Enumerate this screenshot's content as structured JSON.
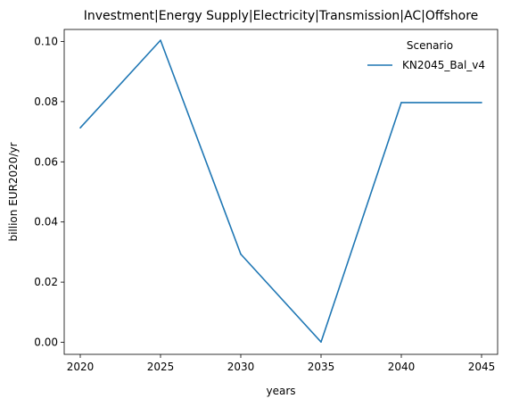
{
  "chart_data": {
    "type": "line",
    "title": "Investment|Energy Supply|Electricity|Transmission|AC|Offshore",
    "xlabel": "years",
    "ylabel": "billion EUR2020/yr",
    "x": [
      2020,
      2025,
      2030,
      2035,
      2040,
      2045
    ],
    "x_ticks": [
      "2020",
      "2025",
      "2030",
      "2035",
      "2040",
      "2045"
    ],
    "y_ticks": [
      "0.00",
      "0.02",
      "0.04",
      "0.06",
      "0.08",
      "0.10"
    ],
    "xlim": [
      2019,
      2046
    ],
    "ylim": [
      -0.004,
      0.104
    ],
    "grid": false,
    "legend": {
      "title": "Scenario",
      "placement": "top-right"
    },
    "series": [
      {
        "name": "KN2045_Bal_v4",
        "color": "#1f77b4",
        "values": [
          0.0713,
          0.1004,
          0.0293,
          0.0001,
          0.0797,
          0.0797
        ]
      }
    ]
  }
}
